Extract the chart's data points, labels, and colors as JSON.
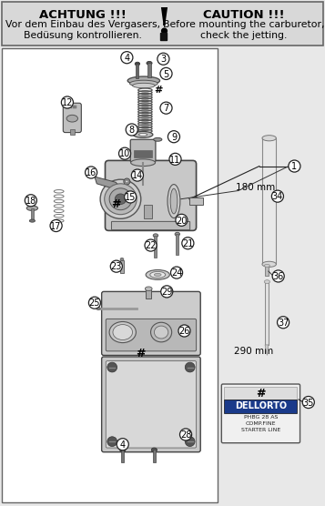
{
  "title_left_line1": "ACHTUNG !!!",
  "title_left_line2": "Vor dem Einbau des Vergasers,",
  "title_left_line3": "Bedüsung kontrollieren.",
  "title_right_line1": "CAUTION !!!",
  "title_right_line2": "Before mounting the carburetor,",
  "title_right_line3": "check the jetting.",
  "label_180mm": "180 mm",
  "label_290mm": "290 mm",
  "bg_color": "#e8e8e8",
  "banner_color": "#d8d8d8",
  "diagram_bg": "#ffffff",
  "border_color": "#666666",
  "dark": "#222222",
  "mid": "#888888",
  "light": "#cccccc",
  "lighter": "#e0e0e0"
}
